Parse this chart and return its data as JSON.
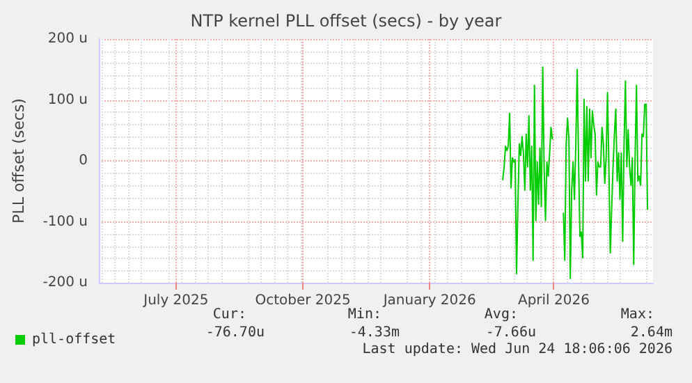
{
  "chart_data": {
    "type": "line",
    "title": "NTP kernel PLL offset (secs) - by year",
    "ylabel": "PLL offset (secs)",
    "x": [
      "2026-02-23",
      "2026-02-24",
      "2026-02-25",
      "2026-02-26",
      "2026-02-27",
      "2026-02-28",
      "2026-03-01",
      "2026-03-02",
      "2026-03-03",
      "2026-03-04",
      "2026-03-05",
      "2026-03-06",
      "2026-03-07",
      "2026-03-08",
      "2026-03-09",
      "2026-03-10",
      "2026-03-11",
      "2026-03-12",
      "2026-03-13",
      "2026-03-14",
      "2026-03-15",
      "2026-03-16",
      "2026-03-17",
      "2026-03-18",
      "2026-03-19",
      "2026-03-20",
      "2026-03-21",
      "2026-03-22",
      "2026-03-23",
      "2026-03-24",
      "2026-03-25",
      "2026-03-26",
      "2026-03-27",
      "2026-03-28",
      "2026-03-29",
      "2026-03-30",
      "2026-03-31",
      "2026-04-04",
      "2026-04-08",
      "2026-04-09",
      "2026-04-10",
      "2026-04-11",
      "2026-04-12",
      "2026-04-13",
      "2026-04-14",
      "2026-04-15",
      "2026-04-16",
      "2026-04-17",
      "2026-04-18",
      "2026-04-19",
      "2026-04-20",
      "2026-04-21",
      "2026-04-22",
      "2026-04-23",
      "2026-04-24",
      "2026-04-25",
      "2026-04-26",
      "2026-04-27",
      "2026-04-28",
      "2026-04-29",
      "2026-04-30",
      "2026-05-01",
      "2026-05-02",
      "2026-05-03",
      "2026-05-04",
      "2026-05-05",
      "2026-05-06",
      "2026-05-07",
      "2026-05-08",
      "2026-05-09",
      "2026-05-10",
      "2026-05-11",
      "2026-05-12",
      "2026-05-13",
      "2026-05-14",
      "2026-05-15",
      "2026-05-16",
      "2026-05-17",
      "2026-05-18",
      "2026-05-19",
      "2026-05-20",
      "2026-05-21",
      "2026-05-22",
      "2026-05-23",
      "2026-05-24",
      "2026-05-25",
      "2026-05-26",
      "2026-05-27",
      "2026-05-28",
      "2026-05-29",
      "2026-05-30",
      "2026-05-31",
      "2026-06-01",
      "2026-06-02",
      "2026-06-03",
      "2026-06-04",
      "2026-06-05",
      "2026-06-06",
      "2026-06-07",
      "2026-06-08"
    ],
    "series": [
      {
        "name": "pll-offset",
        "color": "#00cc00",
        "values": [
          -31,
          -10,
          24,
          17,
          24,
          78,
          -44,
          5,
          -2,
          2,
          -185,
          -71,
          28,
          9,
          40,
          13,
          -48,
          44,
          -10,
          74,
          -48,
          24,
          -163,
          124,
          -98,
          -2,
          -71,
          21,
          -75,
          154,
          -10,
          -98,
          -2,
          -25,
          13,
          55,
          36,
          null,
          -86,
          -163,
          28,
          70,
          36,
          -193,
          -48,
          -2,
          -63,
          28,
          150,
          -2,
          -124,
          -117,
          -159,
          101,
          -33,
          89,
          -33,
          85,
          5,
          82,
          59,
          44,
          -56,
          -2,
          -10,
          -10,
          55,
          28,
          -37,
          5,
          112,
          -10,
          -151,
          -79,
          -10,
          44,
          85,
          -33,
          13,
          -63,
          13,
          -132,
          28,
          131,
          -10,
          51,
          -10,
          -40,
          5,
          -170,
          5,
          124,
          -33,
          -25,
          -40,
          44,
          40,
          93,
          93,
          -79
        ]
      }
    ],
    "xlim": [
      "2025-05-06",
      "2026-06-12"
    ],
    "xticks": [
      {
        "value": "2025-07-01",
        "label": "July 2025"
      },
      {
        "value": "2025-10-01",
        "label": "October 2025"
      },
      {
        "value": "2026-01-01",
        "label": "January 2026"
      },
      {
        "value": "2026-04-01",
        "label": "April 2026"
      }
    ],
    "ylim": [
      -200,
      200
    ],
    "yticks": [
      {
        "value": -200,
        "label": "-200 u"
      },
      {
        "value": -100,
        "label": "-100 u"
      },
      0,
      {
        "value": 100,
        "label": "100 u"
      },
      {
        "value": 200,
        "label": "200 u"
      }
    ],
    "grid": true,
    "legend": "bottom left",
    "marker": "none",
    "line_style": "solid",
    "annotations": [
      "Cur:",
      "Min:",
      "Avg:",
      "Max:",
      "-76.70u",
      "-4.33m",
      "-7.66u",
      "2.64m",
      "Last update: Wed Jun 24 18:06:06 2026"
    ]
  }
}
